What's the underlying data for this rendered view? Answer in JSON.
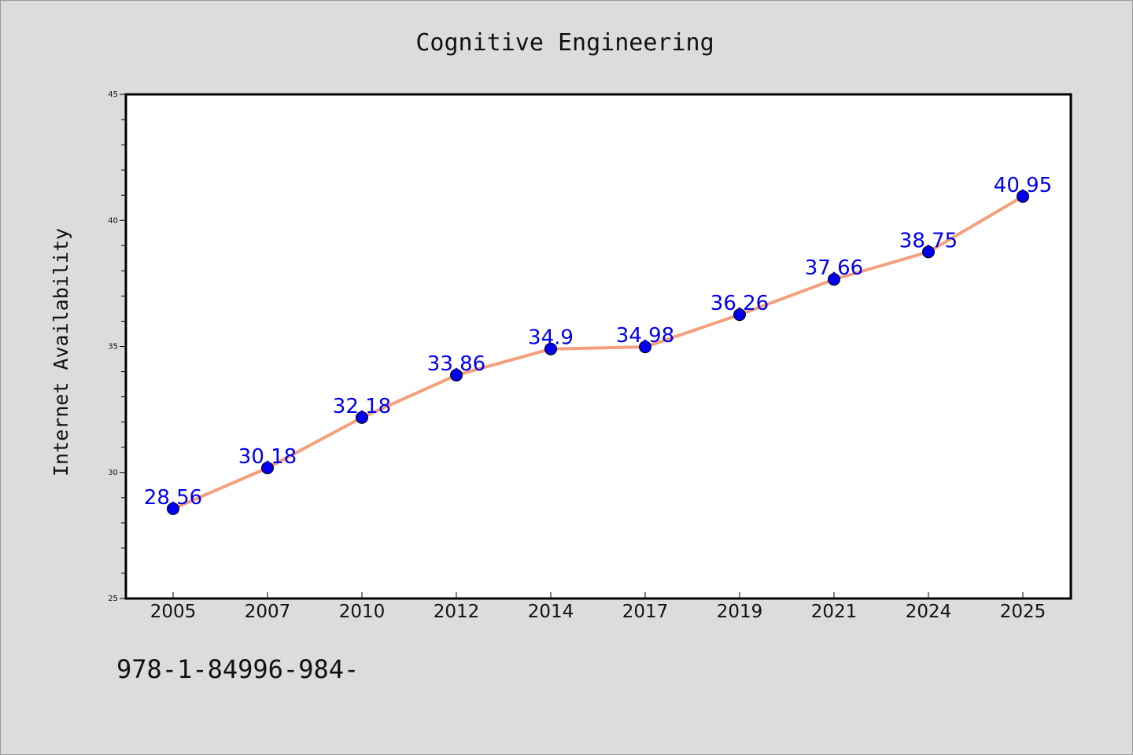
{
  "chart_data": {
    "type": "line",
    "title": "Cognitive Engineering",
    "xlabel": "",
    "ylabel": "Internet Availability",
    "categories": [
      "2005",
      "2007",
      "2010",
      "2012",
      "2014",
      "2017",
      "2019",
      "2021",
      "2024",
      "2025"
    ],
    "series": [
      {
        "values": [
          28.56,
          30.18,
          32.18,
          33.86,
          34.9,
          34.98,
          36.26,
          37.66,
          38.75,
          40.95
        ],
        "line_color": "#f4a07c",
        "marker_color": "#0000ee"
      }
    ],
    "data_label_color": "#0000ee",
    "ylim": [
      25,
      45
    ],
    "yticks": [
      25,
      30,
      35,
      40,
      45
    ],
    "grid": false,
    "legend": "none"
  },
  "footer": {
    "text": "978-1-84996-984-"
  }
}
